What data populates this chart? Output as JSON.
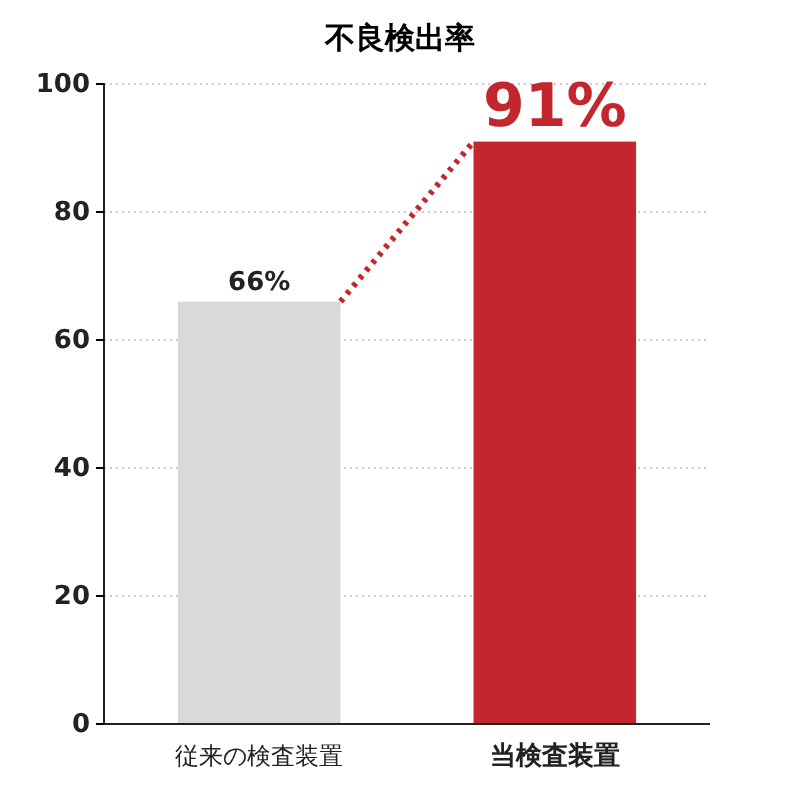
{
  "chart_data": {
    "type": "bar",
    "title": "不良検出率",
    "categories": [
      "従来の検査装置",
      "当検査装置"
    ],
    "values": [
      66,
      91
    ],
    "colors": [
      "#d9d9d9",
      "#c1272d"
    ],
    "value_labels": [
      "66%",
      "91%"
    ],
    "ylim": [
      0,
      100
    ],
    "yticks": [
      0,
      20,
      40,
      60,
      80,
      100
    ],
    "grid": "y"
  }
}
